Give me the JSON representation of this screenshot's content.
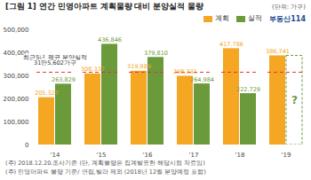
{
  "chart_data": {
    "type": "bar",
    "title": "[그림 1] 연간 민영아파트 계획물량 대비 분양실적 물량",
    "y_label": "(단위: 가구)",
    "source": "부동산114",
    "categories": [
      "'14",
      "'15",
      "'16",
      "'17",
      "'18",
      "'19"
    ],
    "series": [
      {
        "name": "계획",
        "color": "#f5a623",
        "values": [
          205327,
          308337,
          319889,
          298331,
          417786,
          386741
        ],
        "value_labels": [
          "205,327",
          "308,337",
          "319,889",
          "298,331",
          "417,786",
          "386,741"
        ]
      },
      {
        "name": "실적",
        "color": "#6b9a3b",
        "values": [
          263829,
          436846,
          379810,
          264984,
          222729,
          null
        ],
        "value_labels": [
          "263,829",
          "436,846",
          "379,810",
          "264,984",
          "222,729",
          "?"
        ]
      }
    ],
    "reference_line": {
      "value": 315602,
      "color": "#e03a3a",
      "labels": [
        "최근5년 평균 분양실적",
        "31만5,602가구"
      ]
    },
    "ylim": [
      0,
      500000
    ],
    "yticks": [
      0,
      {
        "value": 100000,
        "label": "100,000"
      },
      {
        "value": 200000,
        "label": "200,000"
      },
      {
        "value": 300000,
        "label": "300,000"
      },
      {
        "value": 400000,
        "label": "400,000"
      },
      {
        "value": 500000,
        "label": "500,000"
      }
    ],
    "grid": false,
    "data_labels": true,
    "legend": "top-right",
    "notes": [
      "(주) 2018.12.20.조사기준 (단, 계획물량은 집계발표한 해당시점 자료임)",
      "(주) 민영아파트 물량 기준/ 연립,빌라 제외 (2018년 12월 분양예정 포함)"
    ]
  }
}
